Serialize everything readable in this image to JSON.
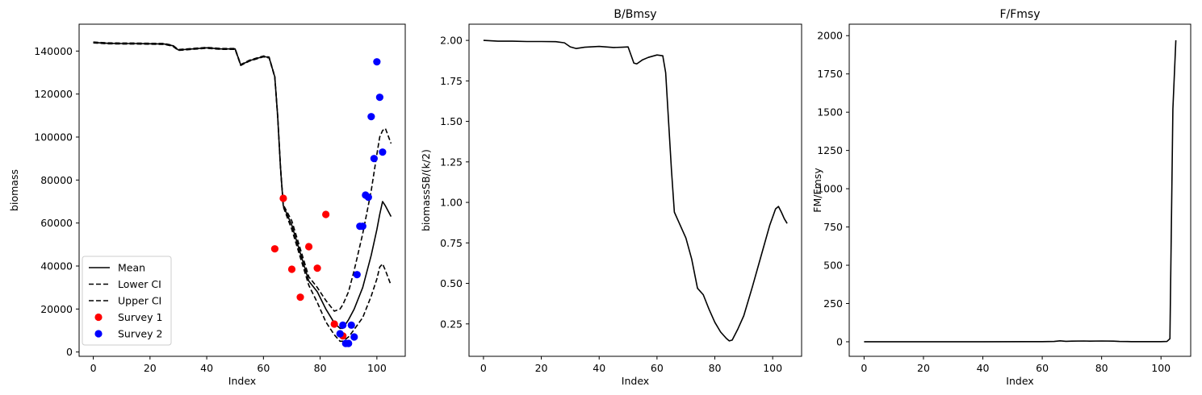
{
  "chart_data": [
    {
      "type": "line",
      "title": "",
      "xlabel": "Index",
      "ylabel": "biomass",
      "xlim": [
        -5,
        110
      ],
      "ylim": [
        -2000,
        152500
      ],
      "xticks": [
        0,
        20,
        40,
        60,
        80,
        100
      ],
      "yticks": [
        0,
        20000,
        40000,
        60000,
        80000,
        100000,
        120000,
        140000
      ],
      "legend": "lower-left",
      "grid": false,
      "series": [
        {
          "name": "Mean",
          "style": "solid",
          "color": "#000000",
          "x": [
            0,
            5,
            10,
            15,
            20,
            25,
            28,
            30,
            35,
            40,
            45,
            50,
            52,
            55,
            60,
            62,
            64,
            65,
            66,
            67,
            70,
            73,
            76,
            79,
            82,
            85,
            87,
            88,
            90,
            92,
            95,
            98,
            100,
            101,
            102,
            103,
            105
          ],
          "y": [
            144000,
            143600,
            143500,
            143500,
            143400,
            143300,
            142500,
            140500,
            141000,
            141500,
            141000,
            141000,
            133500,
            135500,
            137500,
            137000,
            128000,
            110000,
            86000,
            68000,
            59000,
            46000,
            33000,
            28000,
            20000,
            13500,
            11000,
            11000,
            15000,
            20000,
            30000,
            45000,
            57000,
            64000,
            70000,
            68000,
            63000
          ]
        },
        {
          "name": "Lower CI",
          "style": "dashed",
          "color": "#000000",
          "x": [
            0,
            5,
            10,
            15,
            20,
            25,
            28,
            30,
            35,
            40,
            45,
            50,
            52,
            55,
            60,
            62,
            64,
            65,
            66,
            67,
            70,
            73,
            76,
            79,
            82,
            85,
            87,
            88,
            90,
            92,
            95,
            98,
            100,
            101,
            102,
            103,
            105
          ],
          "y": [
            143800,
            143400,
            143300,
            143300,
            143200,
            143100,
            142300,
            140300,
            140800,
            141300,
            140800,
            140800,
            133300,
            135300,
            137300,
            136800,
            127800,
            109500,
            85500,
            67500,
            57000,
            44000,
            31000,
            23000,
            14000,
            8000,
            5000,
            5000,
            7000,
            10500,
            16000,
            26000,
            34000,
            39500,
            41000,
            38000,
            31000
          ]
        },
        {
          "name": "Upper CI",
          "style": "dashed",
          "color": "#000000",
          "x": [
            0,
            5,
            10,
            15,
            20,
            25,
            28,
            30,
            35,
            40,
            45,
            50,
            52,
            55,
            60,
            62,
            64,
            65,
            66,
            67,
            70,
            73,
            76,
            79,
            82,
            85,
            87,
            88,
            90,
            92,
            95,
            98,
            100,
            101,
            102,
            103,
            105
          ],
          "y": [
            144200,
            143800,
            143700,
            143700,
            143600,
            143500,
            142700,
            140700,
            141200,
            141700,
            141200,
            141200,
            133700,
            135700,
            137700,
            137200,
            128200,
            110500,
            86500,
            68500,
            61000,
            48000,
            35000,
            30000,
            24000,
            19000,
            20000,
            22000,
            28000,
            38000,
            55000,
            75000,
            92000,
            100000,
            103000,
            104000,
            97000
          ]
        },
        {
          "name": "Survey 1",
          "style": "markers",
          "color": "#ff0000",
          "x": [
            64,
            67,
            70,
            73,
            76,
            79,
            82,
            85,
            88
          ],
          "y": [
            48000,
            71500,
            38500,
            25500,
            49000,
            39000,
            64000,
            13000,
            7500
          ]
        },
        {
          "name": "Survey 2",
          "style": "markers",
          "color": "#0000ff",
          "x": [
            87,
            88,
            89,
            90,
            91,
            92,
            93,
            94,
            95,
            96,
            97,
            98,
            99,
            100,
            101,
            102
          ],
          "y": [
            8500,
            12500,
            4000,
            4000,
            12500,
            7000,
            36000,
            58500,
            58500,
            73000,
            72000,
            109500,
            90000,
            135000,
            118500,
            93000
          ]
        }
      ]
    },
    {
      "type": "line",
      "title": "B/Bmsy",
      "xlabel": "Index",
      "ylabel": "biomassSB/(k/2)",
      "xlim": [
        -5,
        110
      ],
      "ylim": [
        0.05,
        2.1
      ],
      "xticks": [
        0,
        20,
        40,
        60,
        80,
        100
      ],
      "yticks": [
        0.25,
        0.5,
        0.75,
        1.0,
        1.25,
        1.5,
        1.75,
        2.0
      ],
      "ytick_labels": [
        "0.25",
        "0.50",
        "0.75",
        "1.00",
        "1.25",
        "1.50",
        "1.75",
        "2.00"
      ],
      "grid": false,
      "series": [
        {
          "name": "",
          "style": "solid",
          "color": "#000000",
          "x": [
            0,
            5,
            10,
            15,
            20,
            25,
            28,
            30,
            32,
            35,
            40,
            45,
            48,
            50,
            52,
            53,
            55,
            57,
            60,
            62,
            63,
            64,
            65,
            66,
            67,
            70,
            72,
            74,
            76,
            78,
            80,
            82,
            84,
            85,
            86,
            88,
            90,
            93,
            96,
            99,
            101,
            102,
            103,
            104,
            105
          ],
          "y": [
            2.0,
            1.995,
            1.995,
            1.993,
            1.993,
            1.992,
            1.985,
            1.96,
            1.95,
            1.958,
            1.963,
            1.956,
            1.958,
            1.96,
            1.86,
            1.855,
            1.88,
            1.895,
            1.91,
            1.905,
            1.8,
            1.5,
            1.2,
            0.94,
            0.9,
            0.78,
            0.65,
            0.47,
            0.43,
            0.34,
            0.26,
            0.2,
            0.16,
            0.145,
            0.15,
            0.22,
            0.3,
            0.48,
            0.67,
            0.86,
            0.96,
            0.975,
            0.94,
            0.9,
            0.87
          ]
        }
      ]
    },
    {
      "type": "line",
      "title": "F/Fmsy",
      "xlabel": "Index",
      "ylabel": "FM/Fmsy",
      "xlim": [
        -5,
        110
      ],
      "ylim": [
        -95,
        2075
      ],
      "xticks": [
        0,
        20,
        40,
        60,
        80,
        100
      ],
      "yticks": [
        0,
        250,
        500,
        750,
        1000,
        1250,
        1500,
        1750,
        2000
      ],
      "grid": false,
      "series": [
        {
          "name": "",
          "style": "solid",
          "color": "#000000",
          "x": [
            0,
            20,
            40,
            60,
            64,
            66,
            68,
            70,
            74,
            76,
            80,
            84,
            86,
            90,
            95,
            100,
            102,
            103,
            104,
            105
          ],
          "y": [
            0,
            0,
            0,
            1,
            2,
            6,
            3,
            4,
            5,
            4,
            5,
            4,
            2,
            1,
            1,
            1,
            2,
            20,
            1520,
            1970
          ]
        }
      ]
    }
  ]
}
